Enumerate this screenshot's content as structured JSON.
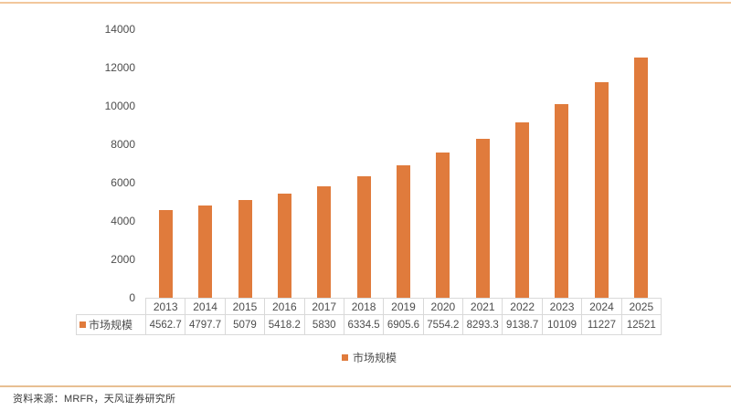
{
  "chart_data": {
    "type": "bar",
    "title": "",
    "xlabel": "",
    "ylabel": "",
    "categories": [
      "2013",
      "2014",
      "2015",
      "2016",
      "2017",
      "2018",
      "2019",
      "2020",
      "2021",
      "2022",
      "2023",
      "2024",
      "2025"
    ],
    "series": [
      {
        "name": "市场规模",
        "values": [
          4562.7,
          4797.7,
          5079,
          5418.2,
          5830,
          6334.5,
          6905.6,
          7554.2,
          8293.3,
          9138.7,
          10109,
          11227,
          12521
        ],
        "value_labels": [
          "4562.7",
          "4797.7",
          "5079",
          "5418.2",
          "5830",
          "6334.5",
          "6905.6",
          "7554.2",
          "8293.3",
          "9138.7",
          "10109",
          "11227",
          "12521"
        ]
      }
    ],
    "ylim": [
      0,
      14000
    ],
    "yticks": [
      0,
      2000,
      4000,
      6000,
      8000,
      10000,
      12000,
      14000
    ],
    "grid": "off",
    "legend_position": "bottom",
    "legend_label": "市场规模",
    "data_table_shown": true
  },
  "colors": {
    "bar": "#e07b3c",
    "top_rule": "#f2c79c",
    "bottom_rule": "#e8bf92",
    "table_border": "#d9d9d9",
    "text": "#4d4d4d"
  },
  "footer": {
    "source_text": "资料来源：MRFR，天风证券研究所"
  }
}
